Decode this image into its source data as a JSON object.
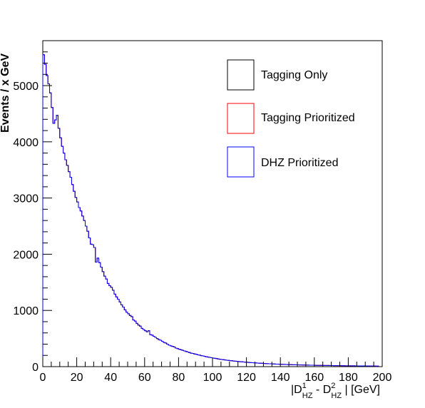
{
  "chart_data": {
    "type": "histogram",
    "title": "",
    "xlabel": "|D1_HZ - D2_HZ| [GeV]",
    "xlabel_parts": {
      "open": "|D",
      "sup1": "1",
      "sub1": "HZ",
      "minus": " - D",
      "sup2": "2",
      "sub2": "HZ",
      "close": " | [GeV]"
    },
    "ylabel": "Events / x GeV",
    "xlim": [
      0,
      200
    ],
    "ylim": [
      0,
      5800
    ],
    "bin_width": 1,
    "x_ticks": [
      0,
      20,
      40,
      60,
      80,
      100,
      120,
      140,
      160,
      180,
      200
    ],
    "x_tick_labels": [
      "0",
      "20",
      "40",
      "60",
      "80",
      "100",
      "120",
      "140",
      "160",
      "180",
      "200"
    ],
    "y_ticks": [
      0,
      1000,
      2000,
      3000,
      4000,
      5000
    ],
    "y_tick_labels": [
      "0",
      "1000",
      "2000",
      "3000",
      "4000",
      "5000"
    ],
    "grid": false,
    "legend_position": "top-right",
    "series": [
      {
        "name": "Tagging Only",
        "color": "#000000",
        "values": [
          5550,
          5380,
          5180,
          5030,
          4870,
          4610,
          4330,
          4390,
          4470,
          4240,
          4070,
          3920,
          3800,
          3680,
          3580,
          3470,
          3370,
          3240,
          3120,
          3010,
          2930,
          2830,
          2770,
          2680,
          2600,
          2500,
          2410,
          2290,
          2180,
          2170,
          2120,
          1860,
          1930,
          1850,
          1770,
          1690,
          1610,
          1560,
          1480,
          1440,
          1410,
          1360,
          1290,
          1240,
          1200,
          1150,
          1100,
          1060,
          1010,
          970,
          940,
          910,
          890,
          830,
          810,
          770,
          740,
          720,
          680,
          660,
          640,
          620,
          640,
          570,
          560,
          540,
          520,
          500,
          480,
          470,
          450,
          430,
          420,
          400,
          380,
          370,
          360,
          350,
          330,
          320,
          310,
          300,
          290,
          280,
          270,
          260,
          250,
          240,
          235,
          225,
          220,
          210,
          205,
          195,
          190,
          182,
          176,
          170,
          165,
          158,
          152,
          147,
          142,
          137,
          132,
          127,
          123,
          119,
          115,
          111,
          107,
          104,
          100,
          97,
          94,
          91,
          88,
          85,
          82,
          80,
          77,
          75,
          72,
          70,
          68,
          66,
          64,
          62,
          60,
          58,
          56,
          54,
          53,
          51,
          50,
          48,
          47,
          45,
          44,
          43,
          41,
          40,
          39,
          38,
          37,
          36,
          35,
          34,
          33,
          32,
          31,
          30,
          30,
          29,
          28,
          27,
          27,
          26,
          25,
          25,
          24,
          23,
          23,
          22,
          22,
          21,
          21,
          20,
          20,
          19,
          19,
          18,
          18,
          17,
          17,
          17,
          16,
          16,
          15,
          15,
          15,
          14,
          14,
          14,
          13,
          13,
          13,
          13,
          12,
          12,
          12,
          12,
          11,
          11,
          11,
          11,
          10,
          10
        ]
      },
      {
        "name": "Tagging Prioritized",
        "color": "#ff0000",
        "values": [
          5550,
          5380,
          5180,
          5030,
          4870,
          4610,
          4330,
          4390,
          4470,
          4240,
          4070,
          3920,
          3800,
          3680,
          3580,
          3470,
          3370,
          3240,
          3120,
          3010,
          2930,
          2830,
          2770,
          2680,
          2600,
          2500,
          2410,
          2290,
          2180,
          2170,
          2120,
          1860,
          1930,
          1850,
          1770,
          1690,
          1610,
          1560,
          1480,
          1440,
          1410,
          1360,
          1290,
          1240,
          1200,
          1150,
          1100,
          1060,
          1010,
          970,
          940,
          910,
          890,
          830,
          810,
          770,
          740,
          720,
          680,
          660,
          640,
          620,
          640,
          570,
          560,
          540,
          520,
          500,
          480,
          470,
          450,
          430,
          420,
          400,
          380,
          370,
          360,
          350,
          330,
          320,
          310,
          300,
          290,
          280,
          270,
          260,
          250,
          240,
          235,
          225,
          220,
          210,
          205,
          195,
          190,
          182,
          176,
          170,
          165,
          158,
          152,
          147,
          142,
          137,
          132,
          127,
          123,
          119,
          115,
          111,
          107,
          104,
          100,
          97,
          94,
          91,
          88,
          85,
          82,
          80,
          77,
          75,
          72,
          70,
          68,
          66,
          64,
          62,
          60,
          58,
          56,
          54,
          53,
          51,
          50,
          48,
          47,
          45,
          44,
          43,
          41,
          40,
          39,
          38,
          37,
          36,
          35,
          34,
          33,
          32,
          31,
          30,
          30,
          29,
          28,
          27,
          27,
          26,
          25,
          25,
          24,
          23,
          23,
          22,
          22,
          21,
          21,
          20,
          20,
          19,
          19,
          18,
          18,
          17,
          17,
          17,
          16,
          16,
          15,
          15,
          15,
          14,
          14,
          14,
          13,
          13,
          13,
          13,
          12,
          12,
          12,
          12,
          11,
          11,
          11,
          11,
          10,
          10
        ]
      },
      {
        "name": "DHZ Prioritized",
        "color": "#0000ff",
        "values": [
          5550,
          5380,
          5180,
          5030,
          4870,
          4610,
          4330,
          4390,
          4470,
          4240,
          4070,
          3920,
          3800,
          3680,
          3580,
          3470,
          3370,
          3240,
          3120,
          3010,
          2930,
          2830,
          2770,
          2680,
          2600,
          2500,
          2410,
          2290,
          2180,
          2170,
          2120,
          1860,
          1930,
          1850,
          1770,
          1690,
          1610,
          1560,
          1480,
          1440,
          1410,
          1360,
          1290,
          1240,
          1200,
          1150,
          1100,
          1060,
          1010,
          970,
          940,
          910,
          890,
          830,
          810,
          770,
          740,
          720,
          680,
          660,
          640,
          620,
          640,
          570,
          560,
          540,
          520,
          500,
          480,
          470,
          450,
          430,
          420,
          400,
          380,
          370,
          360,
          350,
          330,
          320,
          310,
          300,
          290,
          280,
          270,
          260,
          250,
          240,
          235,
          225,
          220,
          210,
          205,
          195,
          190,
          182,
          176,
          170,
          165,
          158,
          152,
          147,
          142,
          137,
          132,
          127,
          123,
          119,
          115,
          111,
          107,
          104,
          100,
          97,
          94,
          91,
          88,
          85,
          82,
          80,
          77,
          75,
          72,
          70,
          68,
          66,
          64,
          62,
          60,
          58,
          56,
          54,
          53,
          51,
          50,
          48,
          47,
          45,
          44,
          43,
          41,
          40,
          39,
          38,
          37,
          36,
          35,
          34,
          33,
          32,
          31,
          30,
          30,
          29,
          28,
          27,
          27,
          26,
          25,
          25,
          24,
          23,
          23,
          22,
          22,
          21,
          21,
          20,
          20,
          19,
          19,
          18,
          18,
          17,
          17,
          17,
          16,
          16,
          15,
          15,
          15,
          14,
          14,
          14,
          13,
          13,
          13,
          13,
          12,
          12,
          12,
          12,
          11,
          11,
          11,
          11,
          10,
          10
        ]
      }
    ]
  }
}
